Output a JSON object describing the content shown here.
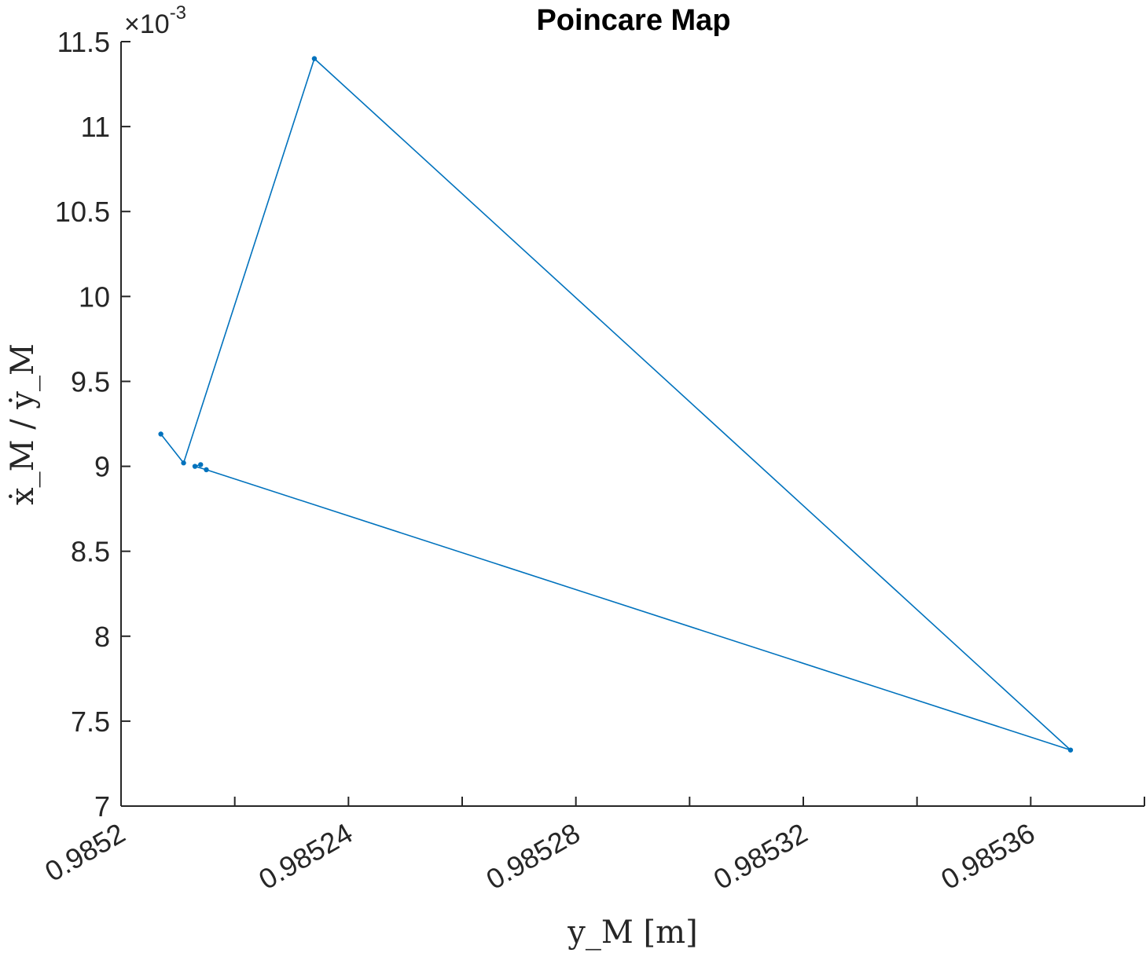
{
  "chart_data": {
    "type": "line",
    "title": "Poincare Map",
    "xlabel": "y_M [m]",
    "ylabel": "ẋ_M / ẏ_M",
    "y_exponent_label": "×10",
    "y_exponent_power": "-3",
    "xlim": [
      0.9852,
      0.98538
    ],
    "ylim": [
      7.0,
      11.5
    ],
    "y_scale_factor": 0.001,
    "x_tick_values": [
      0.9852,
      0.98522,
      0.98524,
      0.98526,
      0.98528,
      0.9853,
      0.98532,
      0.98534,
      0.98536,
      0.98538
    ],
    "x_tick_labels": [
      "0.9852",
      "",
      "0.98524",
      "",
      "0.98528",
      "",
      "0.98532",
      "",
      "0.98536",
      ""
    ],
    "y_tick_values": [
      7,
      7.5,
      8,
      8.5,
      9,
      9.5,
      10,
      10.5,
      11,
      11.5
    ],
    "y_tick_labels": [
      "7",
      "7.5",
      "8",
      "8.5",
      "9",
      "9.5",
      "10",
      "10.5",
      "11",
      "11.5"
    ],
    "series": [
      {
        "color": "#0072BD",
        "marker": "dot",
        "x": [
          0.985207,
          0.985211,
          0.985234,
          0.985367,
          0.985215,
          0.985213,
          0.985214
        ],
        "y": [
          9.19,
          9.02,
          11.4,
          7.33,
          8.98,
          9.0,
          9.01
        ]
      }
    ],
    "grid": false,
    "box": false
  }
}
